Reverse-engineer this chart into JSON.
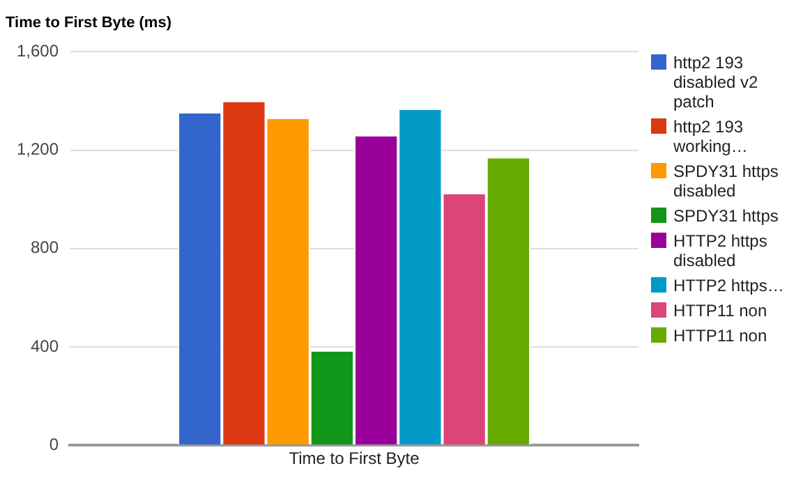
{
  "chart_data": {
    "type": "bar",
    "title": "Time to First Byte (ms)",
    "categories": [
      "Time to First Byte"
    ],
    "series": [
      {
        "name": "http2 193 disabled v2 patch",
        "color": "#3366cc",
        "values": [
          1350
        ]
      },
      {
        "name": "http2 193 working…",
        "color": "#dc3912",
        "values": [
          1396
        ]
      },
      {
        "name": "SPDY31 https disabled",
        "color": "#ff9900",
        "values": [
          1327
        ]
      },
      {
        "name": "SPDY31 https",
        "color": "#109618",
        "values": [
          381
        ]
      },
      {
        "name": "HTTP2 https disabled",
        "color": "#990099",
        "values": [
          1256
        ]
      },
      {
        "name": "HTTP2 https…",
        "color": "#0099c6",
        "values": [
          1363
        ]
      },
      {
        "name": "HTTP11 non",
        "color": "#dd4477",
        "values": [
          1021
        ]
      },
      {
        "name": "HTTP11 non",
        "color": "#66aa00",
        "values": [
          1167
        ]
      }
    ],
    "ylim": [
      0,
      1600
    ],
    "yticks": [
      0,
      400,
      800,
      {
        "value": 1200,
        "label": "1,200"
      },
      {
        "value": 1600,
        "label": "1,600"
      }
    ],
    "grid": "y",
    "legend": "right"
  }
}
